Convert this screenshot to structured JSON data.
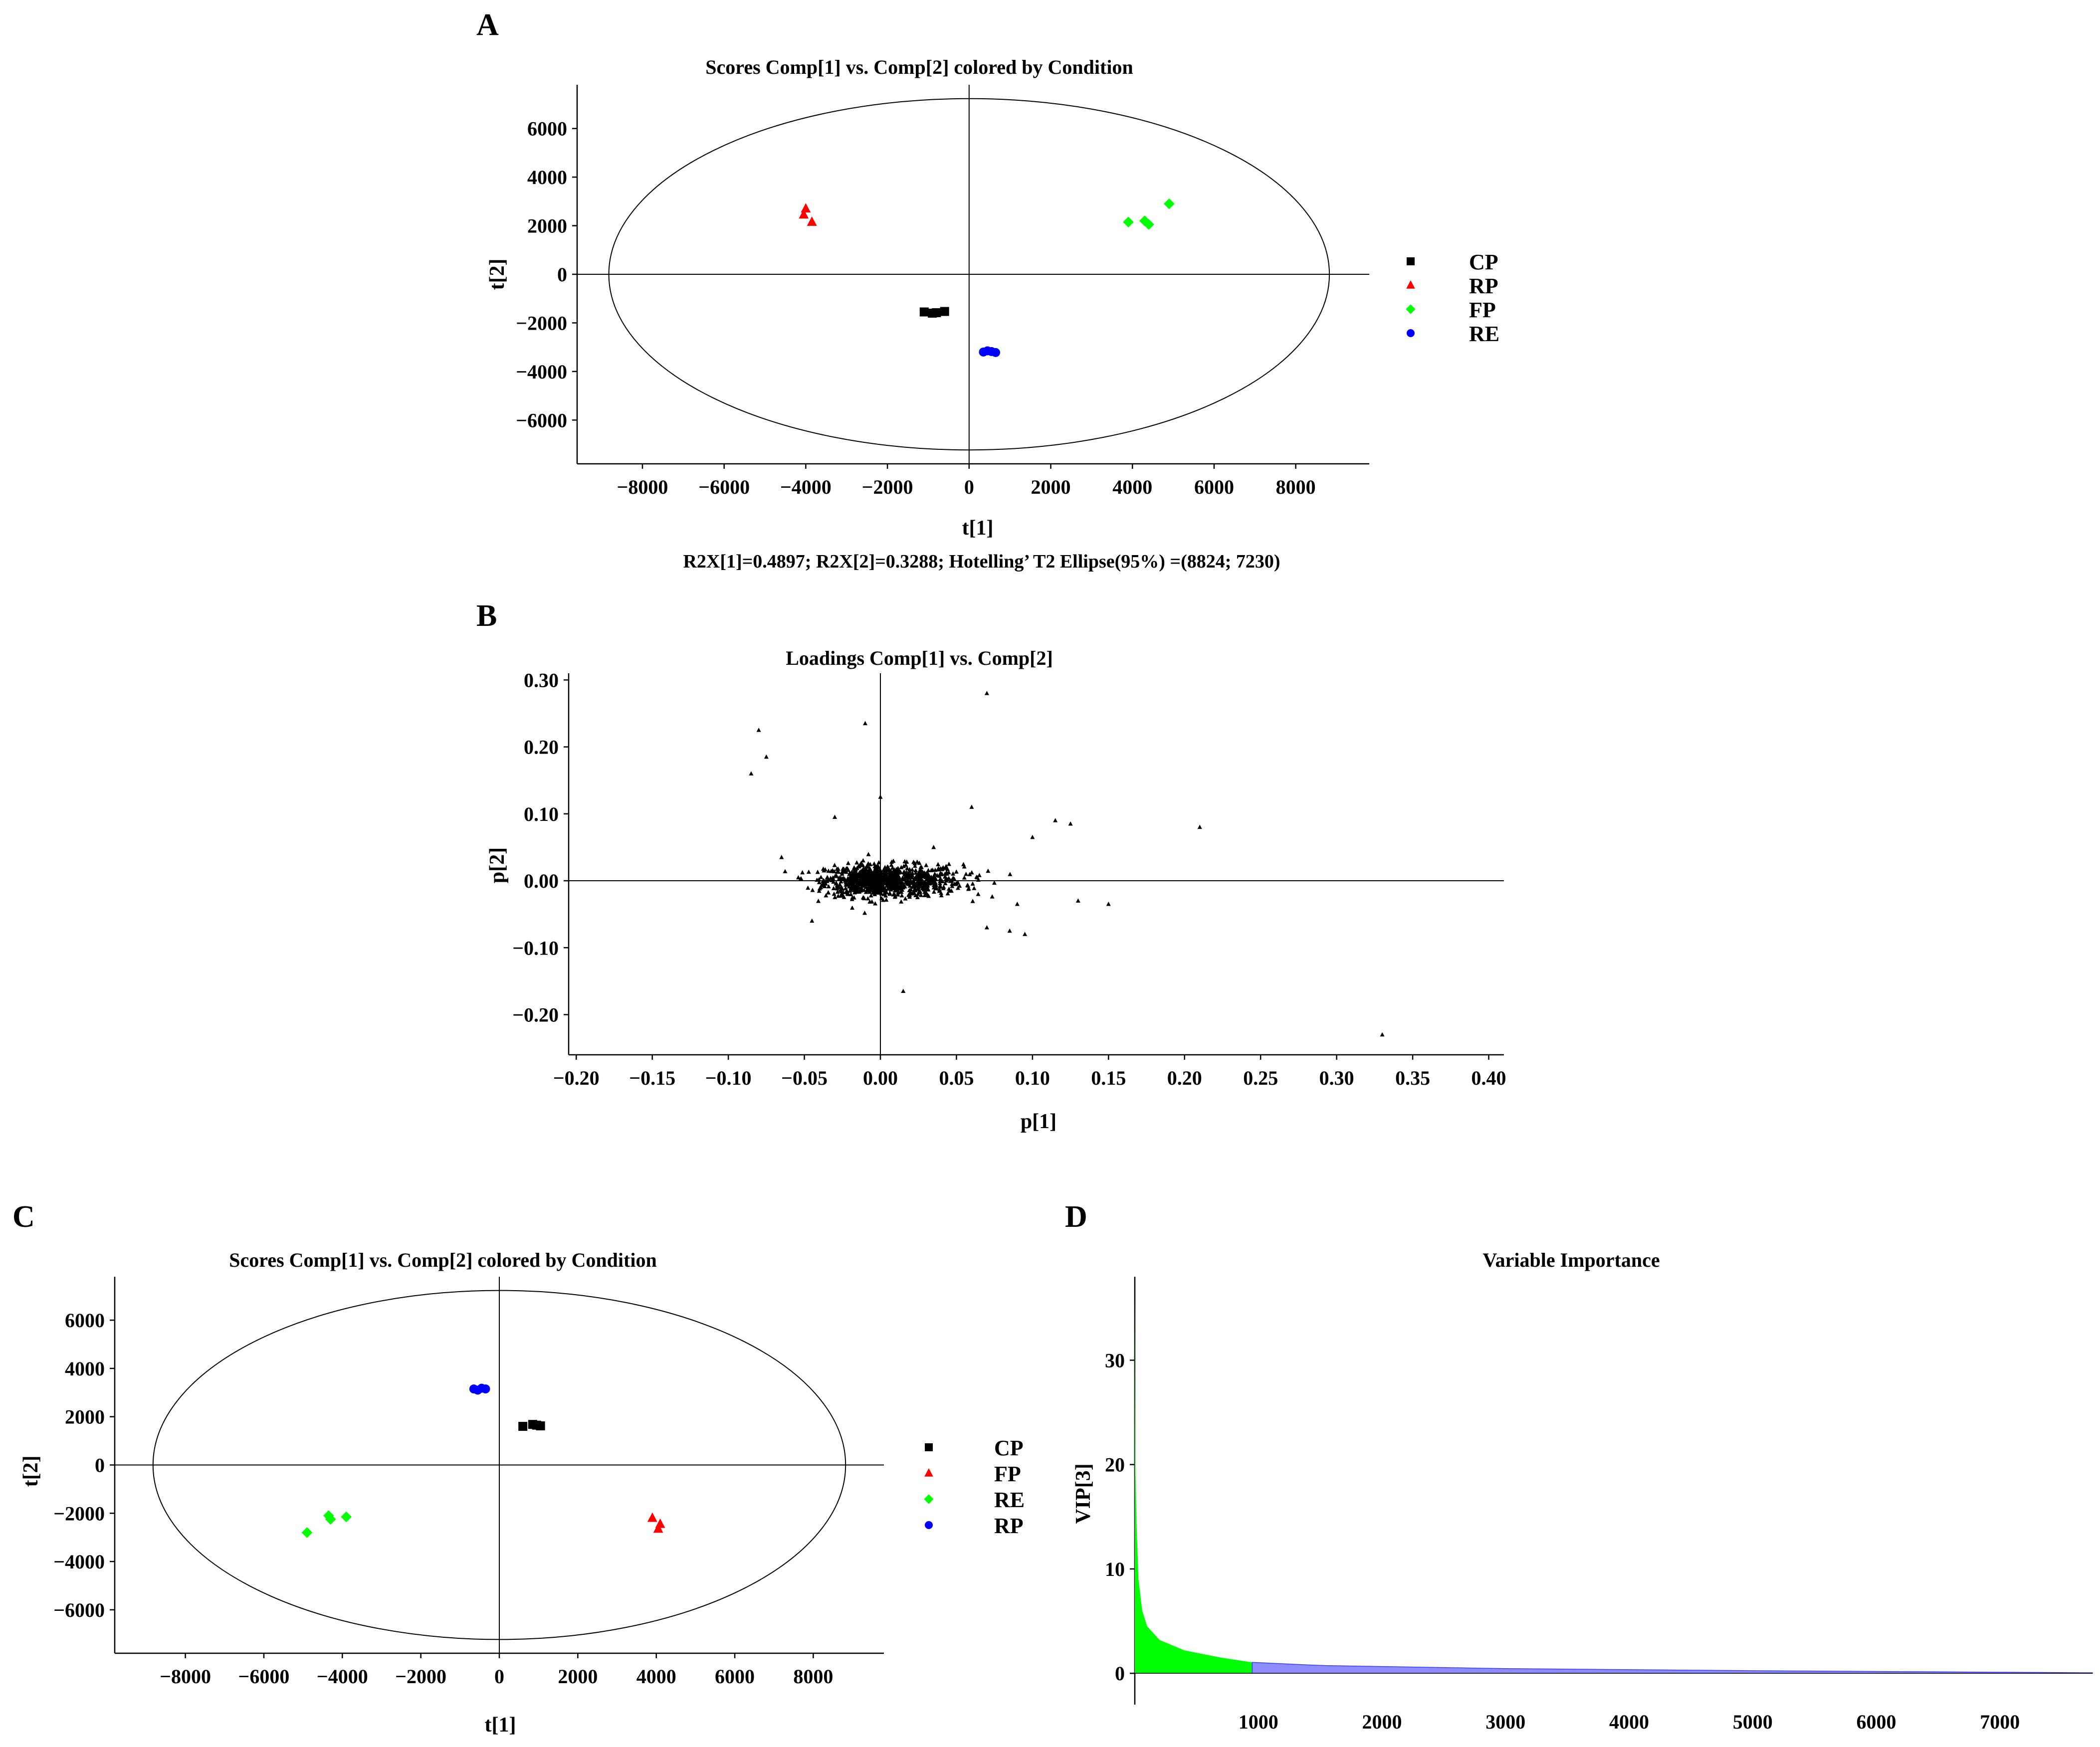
{
  "colors": {
    "black": "#000000",
    "red": "#ff0000",
    "green": "#00ff00",
    "blue": "#0000ff",
    "vip_green": "#00ff00",
    "vip_blue": "#8c8cff"
  },
  "panels": {
    "A": "A",
    "B": "B",
    "C": "C",
    "D": "D"
  },
  "chart_data": [
    {
      "id": "A",
      "type": "scatter",
      "title": "Scores Comp[1] vs. Comp[2] colored by Condition",
      "xlabel": "t[1]",
      "ylabel": "t[2]",
      "xlim": [
        -9600,
        9800
      ],
      "ylim": [
        -7800,
        7800
      ],
      "xticks": [
        -8000,
        -6000,
        -4000,
        -2000,
        0,
        2000,
        4000,
        6000,
        8000
      ],
      "yticks": [
        -6000,
        -4000,
        -2000,
        0,
        2000,
        4000,
        6000
      ],
      "footnote": "R2X[1]=0.4897; R2X[2]=0.3288; Hotelling’ T2 Ellipse(95%) =(8824; 7230)",
      "ellipse": {
        "rx": 8824,
        "ry": 7230
      },
      "series": [
        {
          "name": "CP",
          "color": "#000000",
          "marker": "square",
          "points": [
            [
              -1100,
              -1550
            ],
            [
              -900,
              -1600
            ],
            [
              -800,
              -1580
            ],
            [
              -600,
              -1530
            ]
          ]
        },
        {
          "name": "RP",
          "color": "#ff0000",
          "marker": "triangle",
          "points": [
            [
              -4000,
              2700
            ],
            [
              -4050,
              2450
            ],
            [
              -3850,
              2150
            ]
          ]
        },
        {
          "name": "FP",
          "color": "#00ff00",
          "marker": "diamond",
          "points": [
            [
              3900,
              2150
            ],
            [
              4300,
              2200
            ],
            [
              4400,
              2050
            ],
            [
              4900,
              2900
            ]
          ]
        },
        {
          "name": "RE",
          "color": "#0000ff",
          "marker": "circle",
          "points": [
            [
              350,
              -3200
            ],
            [
              450,
              -3150
            ],
            [
              550,
              -3180
            ],
            [
              650,
              -3220
            ]
          ]
        }
      ]
    },
    {
      "id": "B",
      "type": "scatter",
      "title": "Loadings Comp[1] vs. Comp[2]",
      "xlabel": "p[1]",
      "ylabel": "p[2]",
      "xlim": [
        -0.205,
        0.41
      ],
      "ylim": [
        -0.26,
        0.31
      ],
      "xticks": [
        "−0.20",
        "−0.15",
        "−0.10",
        "−0.05",
        "0.00",
        "0.05",
        "0.10",
        "0.15",
        "0.20",
        "0.25",
        "0.30",
        "0.35",
        "0.40"
      ],
      "xtick_values": [
        -0.2,
        -0.15,
        -0.1,
        -0.05,
        0,
        0.05,
        0.1,
        0.15,
        0.2,
        0.25,
        0.3,
        0.35,
        0.4
      ],
      "yticks": [
        "−0.20",
        "−0.10",
        "0.00",
        "0.10",
        "0.20",
        "0.30"
      ],
      "ytick_values": [
        -0.2,
        -0.1,
        0,
        0.1,
        0.2,
        0.3
      ],
      "points_note": "dense cloud of ~1000 loadings near origin",
      "cloud": {
        "count": 1000,
        "center": [
          0,
          0
        ],
        "sd": [
          0.018,
          0.012
        ]
      },
      "outliers": [
        [
          0.33,
          -0.23
        ],
        [
          0.21,
          0.08
        ],
        [
          0.07,
          0.28
        ],
        [
          -0.08,
          0.225
        ],
        [
          -0.075,
          0.185
        ],
        [
          -0.085,
          0.16
        ],
        [
          -0.01,
          0.235
        ],
        [
          0.015,
          -0.165
        ],
        [
          0.15,
          -0.035
        ],
        [
          0.13,
          -0.03
        ],
        [
          0.115,
          0.09
        ],
        [
          0.125,
          0.085
        ],
        [
          0.06,
          0.11
        ],
        [
          0.1,
          0.065
        ],
        [
          -0.03,
          0.095
        ],
        [
          0.0,
          0.125
        ],
        [
          0.09,
          -0.035
        ],
        [
          0.085,
          -0.075
        ],
        [
          0.095,
          -0.08
        ],
        [
          -0.065,
          0.035
        ],
        [
          -0.045,
          -0.06
        ],
        [
          0.07,
          -0.07
        ],
        [
          0.035,
          0.05
        ]
      ]
    },
    {
      "id": "C",
      "type": "scatter",
      "title": "Scores Comp[1] vs. Comp[2] colored by Condition",
      "xlabel": "t[1]",
      "ylabel": "t[2]",
      "xlim": [
        -9800,
        9800
      ],
      "ylim": [
        -7800,
        7800
      ],
      "xticks": [
        -8000,
        -6000,
        -4000,
        -2000,
        0,
        2000,
        4000,
        6000,
        8000
      ],
      "yticks": [
        -6000,
        -4000,
        -2000,
        0,
        2000,
        4000,
        6000
      ],
      "ellipse": {
        "rx": 8824,
        "ry": 7230
      },
      "series": [
        {
          "name": "CP",
          "color": "#000000",
          "marker": "square",
          "points": [
            [
              600,
              1600
            ],
            [
              850,
              1680
            ],
            [
              950,
              1650
            ],
            [
              1050,
              1620
            ]
          ]
        },
        {
          "name": "FP",
          "color": "#ff0000",
          "marker": "triangle",
          "points": [
            [
              3900,
              -2200
            ],
            [
              4100,
              -2450
            ],
            [
              4050,
              -2650
            ]
          ]
        },
        {
          "name": "RE",
          "color": "#00ff00",
          "marker": "diamond",
          "points": [
            [
              -4900,
              -2800
            ],
            [
              -4350,
              -2100
            ],
            [
              -4300,
              -2250
            ],
            [
              -3900,
              -2150
            ]
          ]
        },
        {
          "name": "RP",
          "color": "#0000ff",
          "marker": "circle",
          "points": [
            [
              -650,
              3150
            ],
            [
              -550,
              3100
            ],
            [
              -450,
              3180
            ],
            [
              -350,
              3150
            ]
          ]
        }
      ]
    },
    {
      "id": "D",
      "type": "area",
      "title": "Variable Importance",
      "xlabel": "",
      "ylabel": "VIP[3]",
      "xlim": [
        0,
        7750
      ],
      "ylim": [
        -3,
        38
      ],
      "xticks": [
        1000,
        2000,
        3000,
        4000,
        5000,
        6000,
        7000
      ],
      "yticks": [
        0,
        10,
        20,
        30
      ],
      "threshold_index": 950,
      "n_variables": 7750,
      "vip_curve": [
        [
          0,
          36
        ],
        [
          5,
          20
        ],
        [
          15,
          14
        ],
        [
          30,
          9
        ],
        [
          60,
          6
        ],
        [
          100,
          4.5
        ],
        [
          200,
          3.2
        ],
        [
          400,
          2.2
        ],
        [
          700,
          1.5
        ],
        [
          950,
          1.05
        ],
        [
          1500,
          0.75
        ],
        [
          3000,
          0.45
        ],
        [
          5000,
          0.25
        ],
        [
          7750,
          0.05
        ]
      ]
    }
  ]
}
